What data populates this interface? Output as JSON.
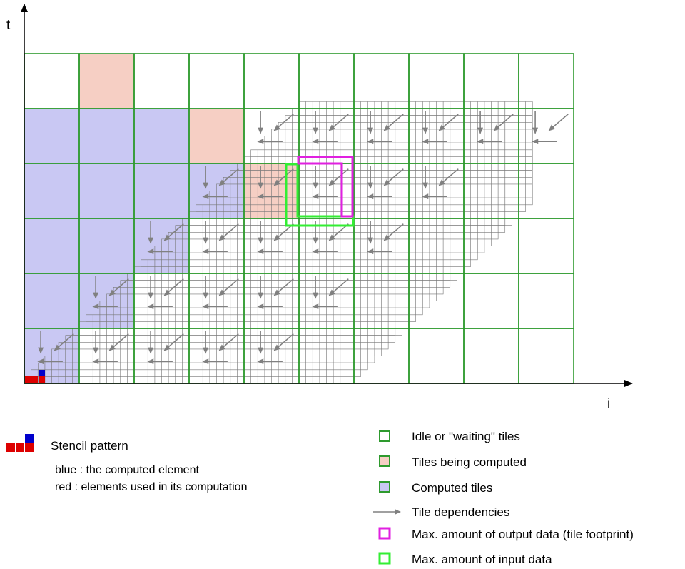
{
  "axes": {
    "x_label": "i",
    "y_label": "t"
  },
  "stencil": {
    "title": "Stencil pattern",
    "line_blue": "blue : the computed element",
    "line_red": "red : elements used in its computation",
    "computed_color": "#0000cc",
    "used_color": "#dd0000"
  },
  "legend": {
    "idle": "Idle or \"waiting\" tiles",
    "computing": "Tiles being computed",
    "computed": "Computed tiles",
    "dependencies": "Tile dependencies",
    "output": "Max. amount of output data (tile footprint)",
    "input": "Max. amount of input data"
  },
  "colors": {
    "tile_border": "#2e9a2e",
    "computing_fill": "#f6cfc4",
    "computed_fill": "#c9c8f3",
    "arrow": "#808080",
    "output_box": "#e020e0",
    "input_box": "#33ee33"
  }
}
